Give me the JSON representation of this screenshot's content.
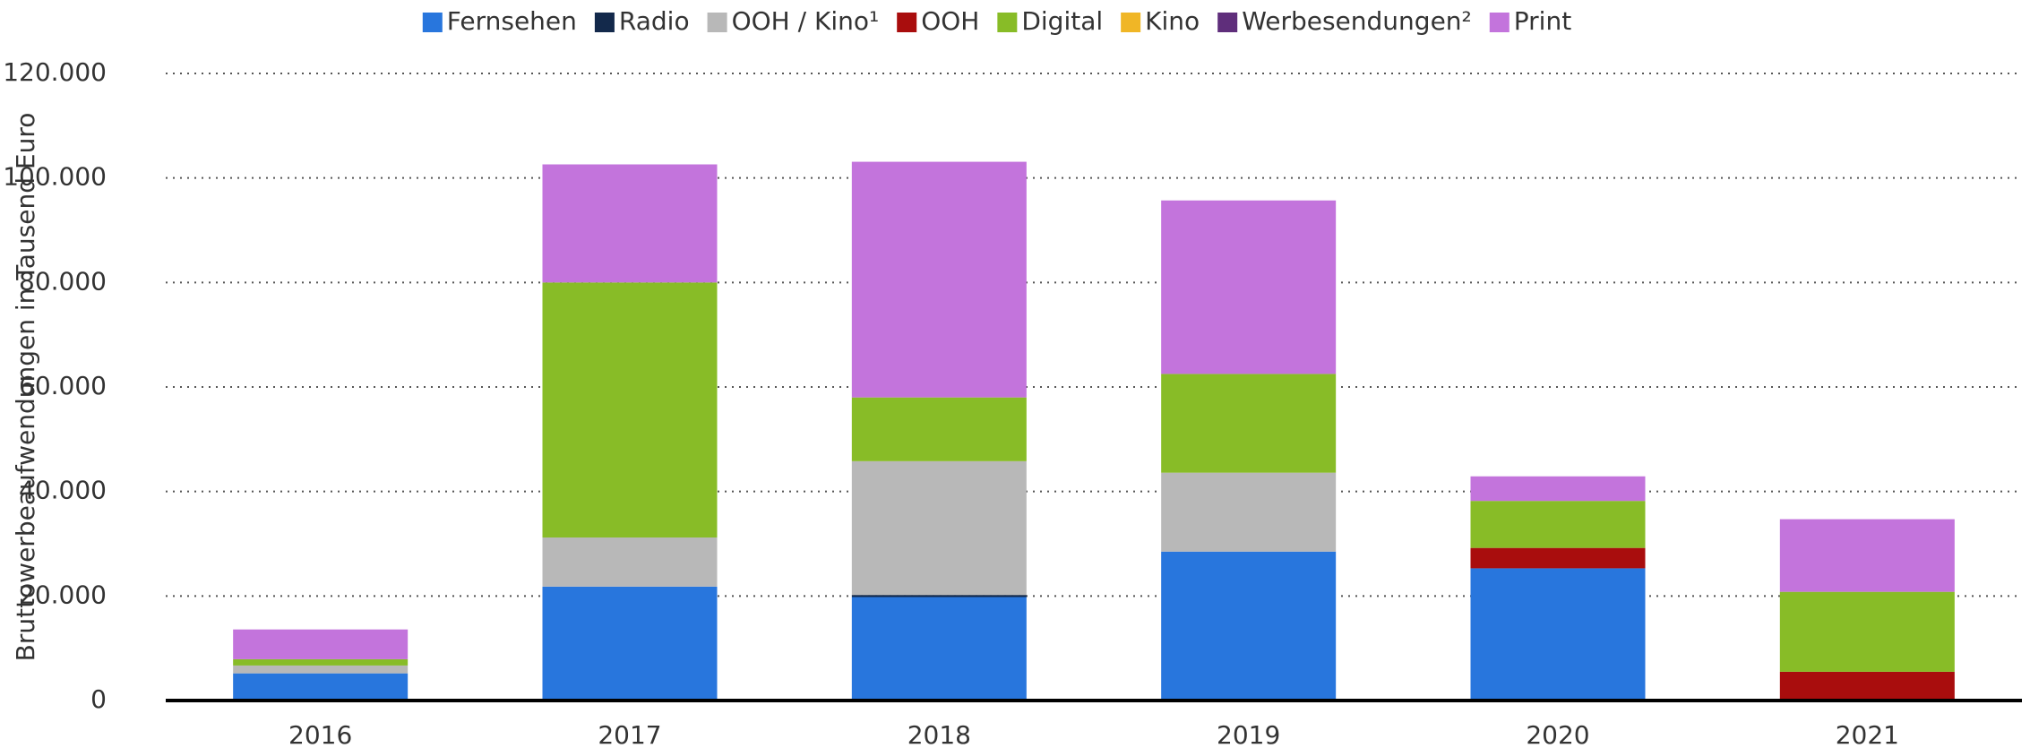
{
  "chart_data": {
    "type": "stacked_bar",
    "y_axis_label": "Bruttowerbeaufwendungen in Tausend Euro",
    "categories": [
      "2016",
      "2017",
      "2018",
      "2019",
      "2020",
      "2021"
    ],
    "series": [
      {
        "name": "Fernsehen",
        "color": "#2876dd",
        "values": [
          5200,
          21800,
          19800,
          28500,
          25300,
          null
        ]
      },
      {
        "name": "Radio",
        "color": "#13294b",
        "values": [
          null,
          null,
          400,
          null,
          null,
          null
        ]
      },
      {
        "name": "OOH / Kino¹",
        "color": "#b8b8b8",
        "values": [
          1500,
          9400,
          25600,
          15100,
          null,
          null
        ]
      },
      {
        "name": "OOH",
        "color": "#a90d0d",
        "values": [
          null,
          null,
          null,
          null,
          3900,
          5500
        ]
      },
      {
        "name": "Digital",
        "color": "#88bc27",
        "values": [
          1200,
          48800,
          12200,
          18900,
          9000,
          15300
        ]
      },
      {
        "name": "Kino",
        "color": "#f0b626",
        "values": [
          null,
          null,
          null,
          null,
          null,
          null
        ]
      },
      {
        "name": "Werbesendungen²",
        "color": "#5f2e7b",
        "values": [
          null,
          null,
          null,
          null,
          null,
          null
        ]
      },
      {
        "name": "Print",
        "color": "#c374dc",
        "values": [
          5700,
          22600,
          45100,
          33200,
          4700,
          13900
        ]
      }
    ],
    "ylim": [
      0,
      120000
    ],
    "yticks": [
      0,
      {
        "value": 20000,
        "label": "20.000"
      },
      {
        "value": 40000,
        "label": "40.000"
      },
      {
        "value": 60000,
        "label": "60.000"
      },
      {
        "value": 80000,
        "label": "80.000"
      },
      {
        "value": 100000,
        "label": "100.000"
      },
      {
        "value": 120000,
        "label": "120.000"
      }
    ],
    "grid": true,
    "legend": "top"
  }
}
